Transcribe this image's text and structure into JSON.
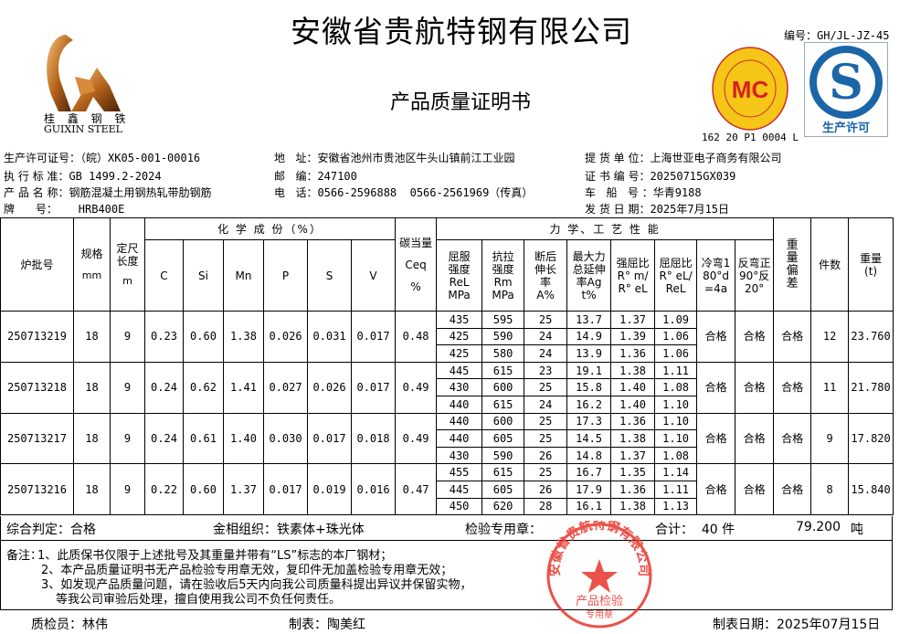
{
  "header": {
    "company": "安徽省贵航特钢有限公司",
    "doc_title": "产品质量证明书",
    "doc_number": "编号：GH/JL-JZ-45",
    "logo": {
      "cn": "桂 鑫 钢 铁",
      "en": "GUIXIN STEEL"
    },
    "mc_logo": {
      "text": "MC",
      "ring_cn": "冶金产品认证",
      "ring_en": "Metallurgical Product Certification",
      "cert_no": "162 20 P1 0004 L"
    },
    "qs_logo": {
      "label": "生产许可"
    }
  },
  "info": {
    "license": {
      "label": "生产许可证号：",
      "value": "（皖）XK05-001-00016"
    },
    "standard": {
      "label": "执 行 标 准：",
      "value": "GB 1499.2-2024"
    },
    "product": {
      "label": "产 品 名 称：",
      "value": "钢筋混凝土用钢热轧带肋钢筋"
    },
    "grade": {
      "label": "牌      号：",
      "value": "HRB400E"
    },
    "address": {
      "label": "地   址：",
      "value": "安徽省池州市贵池区牛头山镇前江工业园"
    },
    "postcode": {
      "label": "邮   编：",
      "value": "247100"
    },
    "phone": {
      "label": "电   话：",
      "value": "0566-2596888  0566-2561969（传真）"
    },
    "consignee": {
      "label": "提 货 单 位：",
      "value": "上海世亚电子商务有限公司"
    },
    "cert_no": {
      "label": "证 书 编 号：",
      "value": "20250715GX039"
    },
    "vehicle": {
      "label": "车   船   号 ：",
      "value": "华青9188"
    },
    "ship_date": {
      "label": "发 货 日 期：",
      "value": "2025年7月15日"
    }
  },
  "table": {
    "h": {
      "heat": "炉批号",
      "spec": "规格",
      "spec_unit": "mm",
      "len": "定尺长度",
      "len_unit": "m",
      "chem": "化 学 成 份（%）",
      "c": "C",
      "si": "Si",
      "mn": "Mn",
      "p": "P",
      "s": "S",
      "v": "V",
      "ceq": "碳当量",
      "ceq_sym": "Ceq",
      "ceq_unit": "%",
      "mech": "力 学、工 艺 性 能",
      "rel": "屈服强度ReLMPa",
      "rm": "抗拉强度RmMPa",
      "a": "断后伸长率A%",
      "agt": "最大力总延伸率Agt%",
      "ratio1": "强屈比R° m/R° eL",
      "ratio2": "屈屈比R° eL/ReL",
      "cold": "冷弯180°d=4a",
      "rev": "反弯正90°反20°",
      "dev": "重量偏差",
      "pcs": "件数",
      "wt": "重量(t)"
    },
    "rows": [
      {
        "heat": "250713219",
        "spec": "18",
        "len": "9",
        "c": "0.23",
        "si": "0.60",
        "mn": "1.38",
        "p": "0.026",
        "s": "0.031",
        "v": "0.017",
        "ceq": "0.48",
        "mech": [
          [
            "435",
            "595",
            "25",
            "13.7",
            "1.37",
            "1.09"
          ],
          [
            "425",
            "590",
            "24",
            "14.9",
            "1.39",
            "1.06"
          ],
          [
            "425",
            "580",
            "24",
            "13.9",
            "1.36",
            "1.06"
          ]
        ],
        "cold": "合格",
        "rev": "合格",
        "dev": "合格",
        "pcs": "12",
        "wt": "23.760"
      },
      {
        "heat": "250713218",
        "spec": "18",
        "len": "9",
        "c": "0.24",
        "si": "0.62",
        "mn": "1.41",
        "p": "0.027",
        "s": "0.026",
        "v": "0.017",
        "ceq": "0.49",
        "mech": [
          [
            "445",
            "615",
            "23",
            "19.1",
            "1.38",
            "1.11"
          ],
          [
            "430",
            "600",
            "25",
            "15.8",
            "1.40",
            "1.08"
          ],
          [
            "440",
            "615",
            "24",
            "16.2",
            "1.40",
            "1.10"
          ]
        ],
        "cold": "合格",
        "rev": "合格",
        "dev": "合格",
        "pcs": "11",
        "wt": "21.780"
      },
      {
        "heat": "250713217",
        "spec": "18",
        "len": "9",
        "c": "0.24",
        "si": "0.61",
        "mn": "1.40",
        "p": "0.030",
        "s": "0.017",
        "v": "0.018",
        "ceq": "0.49",
        "mech": [
          [
            "440",
            "600",
            "25",
            "17.3",
            "1.36",
            "1.10"
          ],
          [
            "440",
            "605",
            "25",
            "14.5",
            "1.38",
            "1.10"
          ],
          [
            "430",
            "590",
            "26",
            "14.8",
            "1.37",
            "1.08"
          ]
        ],
        "cold": "合格",
        "rev": "合格",
        "dev": "合格",
        "pcs": "9",
        "wt": "17.820"
      },
      {
        "heat": "250713216",
        "spec": "18",
        "len": "9",
        "c": "0.22",
        "si": "0.60",
        "mn": "1.37",
        "p": "0.017",
        "s": "0.019",
        "v": "0.016",
        "ceq": "0.47",
        "mech": [
          [
            "455",
            "615",
            "25",
            "16.7",
            "1.35",
            "1.14"
          ],
          [
            "445",
            "605",
            "26",
            "17.9",
            "1.36",
            "1.11"
          ],
          [
            "450",
            "620",
            "28",
            "16.1",
            "1.38",
            "1.13"
          ]
        ],
        "cold": "合格",
        "rev": "合格",
        "dev": "合格",
        "pcs": "8",
        "wt": "15.840"
      }
    ]
  },
  "summary": {
    "verdict": "综合判定：合格",
    "structure": "金相组织：铁素体+珠光体",
    "seal_label": "检验专用章：",
    "total": "合计：  40 件",
    "total_weight": "79.200",
    "weight_unit": "吨"
  },
  "notes": {
    "label": "备注：",
    "n1": "1、此质保书仅限于上述批号及其重量并带有“LS”标志的本厂钢材；",
    "n2": "2、本产品质量证明书无产品检验专用章无效，复印件无加盖检验专用章无效；",
    "n3": "3、如发现产品质量问题，请在验收后5天内向我公司质量科提出异议并保留实物，",
    "n4": "等我公司审验后处理，擅自使用我公司不负任何责任。"
  },
  "stamp": {
    "ring": "安徽省贵航特钢有限公司",
    "center": "产品检验",
    "bottom": "专用章",
    "color": "#e8352a"
  },
  "footer": {
    "inspector": "质检员：林伟",
    "preparer": "制表：陶美红",
    "date": "制表日期：2025年07月15日"
  }
}
